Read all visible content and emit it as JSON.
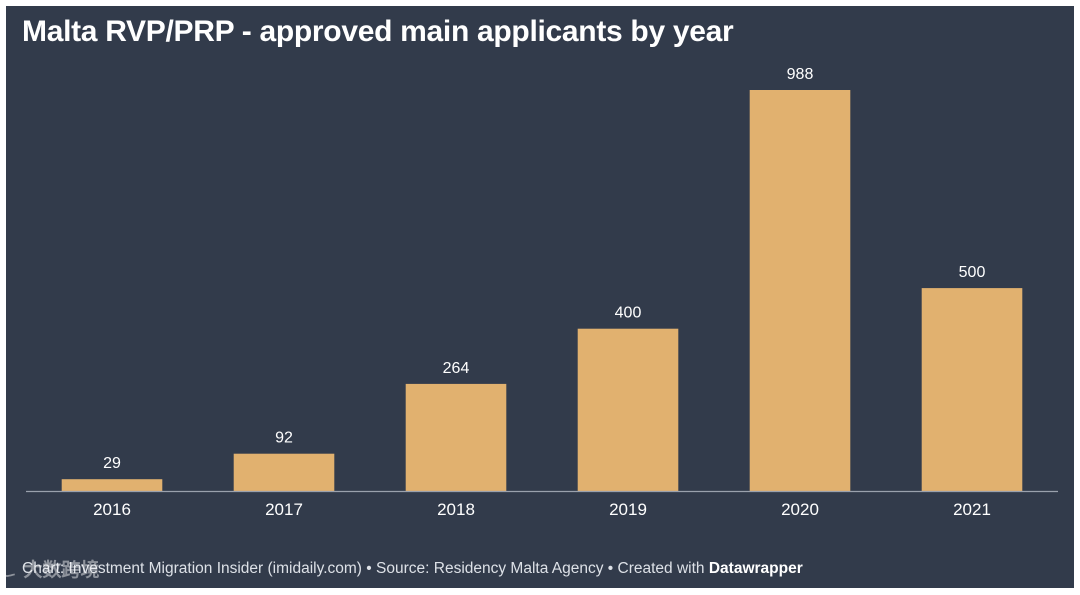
{
  "chart_data": {
    "type": "bar",
    "title": "Malta RVP/PRP - approved main applicants by year",
    "categories": [
      "2016",
      "2017",
      "2018",
      "2019",
      "2020",
      "2021"
    ],
    "values": [
      29,
      92,
      264,
      400,
      988,
      500
    ],
    "xlabel": "",
    "ylabel": "",
    "ylim": [
      0,
      988
    ],
    "grid": false,
    "legend": "none"
  },
  "colors": {
    "background": "#323b4b",
    "bar": "#e1b16f",
    "text": "#ffffff",
    "axis": "#9aa1ad"
  },
  "footer": {
    "chart_prefix": "Chart: ",
    "chart_credit": "Investment Migration Insider (imidaily.com)",
    "separator": " • ",
    "source_prefix": "Source: ",
    "source": "Residency Malta Agency",
    "created_prefix": "Created with ",
    "brand": "Datawrapper"
  },
  "watermark": {
    "icon": "ic-logo-icon",
    "text": "大数跨境"
  }
}
